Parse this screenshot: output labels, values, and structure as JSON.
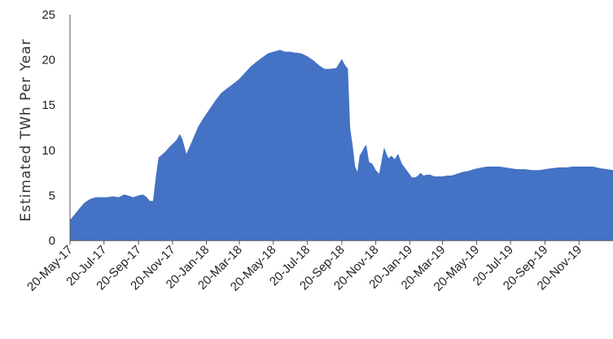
{
  "chart_data": {
    "type": "area",
    "title": "",
    "xlabel": "",
    "ylabel": "Estimated TWh Per Year",
    "ylim": [
      0,
      25
    ],
    "xlim": [
      "2017-05-20",
      "2020-01-20"
    ],
    "grid": false,
    "legend": "none",
    "colors": {
      "area": "#4472c4"
    },
    "y_ticks": [
      0,
      5,
      10,
      15,
      20,
      25
    ],
    "x_ticks": [
      {
        "date": "2017-05-20",
        "label": "20-May-17"
      },
      {
        "date": "2017-07-20",
        "label": "20-Jul-17"
      },
      {
        "date": "2017-09-20",
        "label": "20-Sep-17"
      },
      {
        "date": "2017-11-20",
        "label": "20-Nov-17"
      },
      {
        "date": "2018-01-20",
        "label": "20-Jan-18"
      },
      {
        "date": "2018-03-20",
        "label": "20-Mar-18"
      },
      {
        "date": "2018-05-20",
        "label": "20-May-18"
      },
      {
        "date": "2018-07-20",
        "label": "20-Jul-18"
      },
      {
        "date": "2018-09-20",
        "label": "20-Sep-18"
      },
      {
        "date": "2018-11-20",
        "label": "20-Nov-18"
      },
      {
        "date": "2019-01-20",
        "label": "20-Jan-19"
      },
      {
        "date": "2019-03-20",
        "label": "20-Mar-19"
      },
      {
        "date": "2019-05-20",
        "label": "20-May-19"
      },
      {
        "date": "2019-07-20",
        "label": "20-Jul-19"
      },
      {
        "date": "2019-09-20",
        "label": "20-Sep-19"
      },
      {
        "date": "2019-11-20",
        "label": "20-Nov-19"
      }
    ],
    "series": [
      {
        "x": [
          "2017-05-20",
          "2017-05-27",
          "2017-06-05",
          "2017-06-15",
          "2017-06-25",
          "2017-07-05",
          "2017-07-15",
          "2017-07-25",
          "2017-08-05",
          "2017-08-15",
          "2017-08-25",
          "2017-09-01",
          "2017-09-10",
          "2017-09-20",
          "2017-09-28",
          "2017-10-05",
          "2017-10-10",
          "2017-10-16",
          "2017-10-22",
          "2017-10-26",
          "2017-11-01",
          "2017-11-08",
          "2017-11-15",
          "2017-11-22",
          "2017-11-28",
          "2017-12-03",
          "2017-12-08",
          "2017-12-15",
          "2017-12-25",
          "2018-01-05",
          "2018-01-15",
          "2018-01-25",
          "2018-02-05",
          "2018-02-15",
          "2018-02-25",
          "2018-03-08",
          "2018-03-20",
          "2018-04-01",
          "2018-04-10",
          "2018-04-20",
          "2018-05-01",
          "2018-05-10",
          "2018-05-20",
          "2018-06-01",
          "2018-06-10",
          "2018-06-20",
          "2018-06-27",
          "2018-07-01",
          "2018-07-10",
          "2018-07-20",
          "2018-08-01",
          "2018-08-10",
          "2018-08-20",
          "2018-08-30",
          "2018-09-10",
          "2018-09-20",
          "2018-09-25",
          "2018-10-01",
          "2018-10-05",
          "2018-10-10",
          "2018-10-14",
          "2018-10-18",
          "2018-10-22",
          "2018-10-26",
          "2018-10-30",
          "2018-11-03",
          "2018-11-08",
          "2018-11-14",
          "2018-11-20",
          "2018-11-26",
          "2018-12-01",
          "2018-12-05",
          "2018-12-10",
          "2018-12-13",
          "2018-12-18",
          "2018-12-24",
          "2018-12-30",
          "2019-01-06",
          "2019-01-12",
          "2019-01-18",
          "2019-01-24",
          "2019-01-30",
          "2019-02-04",
          "2019-02-08",
          "2019-02-14",
          "2019-02-20",
          "2019-02-26",
          "2019-03-05",
          "2019-03-12",
          "2019-03-20",
          "2019-03-28",
          "2019-04-05",
          "2019-04-15",
          "2019-04-25",
          "2019-05-05",
          "2019-05-15",
          "2019-05-22",
          "2019-05-30",
          "2019-06-08",
          "2019-06-15",
          "2019-06-22",
          "2019-07-01",
          "2019-07-10",
          "2019-07-20",
          "2019-08-01",
          "2019-08-15",
          "2019-08-28",
          "2019-09-10",
          "2019-09-20",
          "2019-10-01",
          "2019-10-15",
          "2019-10-28",
          "2019-11-10",
          "2019-11-20",
          "2019-12-01",
          "2019-12-15",
          "2019-12-28",
          "2020-01-10",
          "2020-01-20"
        ],
        "values": [
          2.3,
          2.8,
          3.5,
          4.2,
          4.6,
          4.8,
          4.8,
          4.8,
          4.9,
          4.8,
          5.1,
          5.0,
          4.8,
          5.0,
          5.1,
          4.8,
          4.4,
          4.4,
          7.5,
          9.2,
          9.5,
          9.9,
          10.4,
          10.8,
          11.2,
          11.8,
          11.2,
          9.6,
          11.0,
          12.6,
          13.6,
          14.5,
          15.5,
          16.3,
          16.8,
          17.3,
          17.9,
          18.7,
          19.3,
          19.8,
          20.3,
          20.7,
          20.9,
          21.1,
          20.9,
          20.9,
          20.8,
          20.8,
          20.7,
          20.4,
          19.9,
          19.4,
          19.0,
          19.0,
          19.1,
          20.1,
          19.5,
          19.0,
          12.5,
          10.3,
          8.2,
          7.6,
          9.4,
          9.8,
          10.3,
          10.6,
          8.7,
          8.5,
          7.8,
          7.4,
          9.0,
          10.3,
          9.5,
          9.1,
          9.4,
          9.0,
          9.6,
          8.5,
          8.0,
          7.5,
          7.0,
          7.0,
          7.2,
          7.5,
          7.2,
          7.3,
          7.3,
          7.1,
          7.1,
          7.1,
          7.2,
          7.2,
          7.4,
          7.6,
          7.7,
          7.9,
          8.0,
          8.1,
          8.2,
          8.2,
          8.2,
          8.2,
          8.1,
          8.0,
          7.9,
          7.9,
          7.8,
          7.8,
          7.9,
          8.0,
          8.1,
          8.1,
          8.2,
          8.2,
          8.2,
          8.2,
          8.0,
          7.9,
          7.8
        ]
      }
    ]
  }
}
